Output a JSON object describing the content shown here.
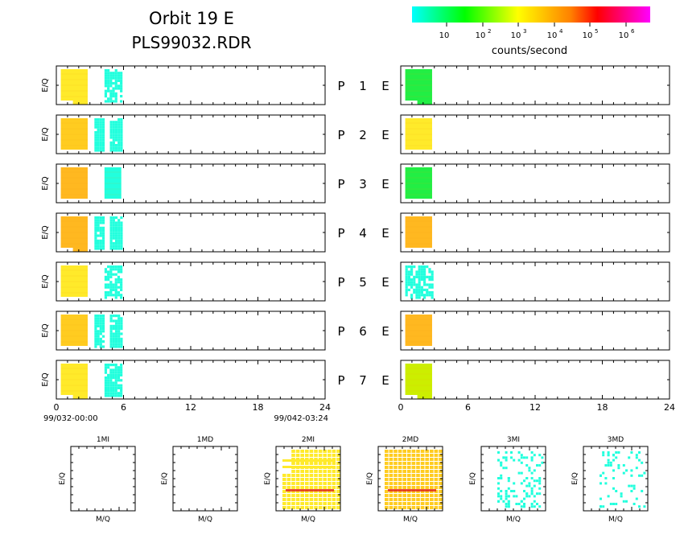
{
  "header": {
    "title": "Orbit 19 E",
    "subtitle": "PLS99032.RDR"
  },
  "colorbar": {
    "label": "counts/second",
    "ticks": [
      {
        "base": "10",
        "exp": ""
      },
      {
        "base": "10",
        "exp": "2"
      },
      {
        "base": "10",
        "exp": "3"
      },
      {
        "base": "10",
        "exp": "4"
      },
      {
        "base": "10",
        "exp": "5"
      },
      {
        "base": "10",
        "exp": "6"
      }
    ],
    "stops": [
      "#00ffff",
      "#00ff80",
      "#00ff00",
      "#80ff00",
      "#ffff00",
      "#ffc000",
      "#ff8000",
      "#ff0000",
      "#ff0080",
      "#ff00ff"
    ]
  },
  "colors": {
    "yellow": "#ffea2a",
    "orange_yellow": "#ffcc20",
    "orange": "#ffb820",
    "green": "#22ee44",
    "lime": "#ccee00",
    "cyan": "#22ffdd",
    "red": "#dd1111"
  },
  "chart_data": {
    "type": "heatmap",
    "ylabel": "E/Q",
    "xlim": [
      0,
      24
    ],
    "x_ticks": [
      "0",
      "6",
      "12",
      "18",
      "24"
    ],
    "left_time_start": "99/032-00:00",
    "left_time_end": "99/042-03:24",
    "rows": [
      {
        "label": "P",
        "num": "1",
        "suffix": "E",
        "left_blocks": [
          {
            "x0": 0.4,
            "x1": 2.8,
            "color": "yellow",
            "cut_bottom": true
          },
          {
            "x0": 4.3,
            "x1": 5.8,
            "color": "cyan",
            "pattern": "sparse"
          }
        ],
        "right_blocks": [
          {
            "x0": 0.4,
            "x1": 2.8,
            "color": "green",
            "cut_bottom": true
          }
        ]
      },
      {
        "label": "P",
        "num": "2",
        "suffix": "E",
        "left_blocks": [
          {
            "x0": 0.4,
            "x1": 2.8,
            "color": "orange_yellow"
          },
          {
            "x0": 3.4,
            "x1": 5.8,
            "color": "cyan",
            "pattern": "gapped"
          }
        ],
        "right_blocks": [
          {
            "x0": 0.4,
            "x1": 2.8,
            "color": "yellow"
          }
        ]
      },
      {
        "label": "P",
        "num": "3",
        "suffix": "E",
        "left_blocks": [
          {
            "x0": 0.4,
            "x1": 2.8,
            "color": "orange"
          },
          {
            "x0": 4.3,
            "x1": 5.8,
            "color": "cyan"
          }
        ],
        "right_blocks": [
          {
            "x0": 0.4,
            "x1": 2.8,
            "color": "green"
          }
        ]
      },
      {
        "label": "P",
        "num": "4",
        "suffix": "E",
        "left_blocks": [
          {
            "x0": 0.4,
            "x1": 2.8,
            "color": "orange",
            "cut_bottom": true
          },
          {
            "x0": 3.4,
            "x1": 5.8,
            "color": "cyan",
            "pattern": "gapped"
          }
        ],
        "right_blocks": [
          {
            "x0": 0.4,
            "x1": 2.8,
            "color": "orange"
          }
        ]
      },
      {
        "label": "P",
        "num": "5",
        "suffix": "E",
        "left_blocks": [
          {
            "x0": 0.4,
            "x1": 2.8,
            "color": "yellow"
          },
          {
            "x0": 4.3,
            "x1": 5.8,
            "color": "cyan",
            "pattern": "sparse"
          }
        ],
        "right_blocks": [
          {
            "x0": 0.4,
            "x1": 2.8,
            "color": "cyan",
            "pattern": "sparse"
          }
        ]
      },
      {
        "label": "P",
        "num": "6",
        "suffix": "E",
        "left_blocks": [
          {
            "x0": 0.4,
            "x1": 2.8,
            "color": "orange_yellow"
          },
          {
            "x0": 3.4,
            "x1": 5.8,
            "color": "cyan",
            "pattern": "gapped"
          }
        ],
        "right_blocks": [
          {
            "x0": 0.4,
            "x1": 2.8,
            "color": "orange"
          }
        ]
      },
      {
        "label": "P",
        "num": "7",
        "suffix": "E",
        "left_blocks": [
          {
            "x0": 0.4,
            "x1": 2.8,
            "color": "yellow",
            "cut_bottom": true
          },
          {
            "x0": 4.3,
            "x1": 5.8,
            "color": "cyan",
            "pattern": "edge"
          }
        ],
        "right_blocks": [
          {
            "x0": 0.4,
            "x1": 2.8,
            "color": "lime",
            "cut_bottom": true
          }
        ]
      }
    ],
    "small_panels": [
      {
        "title": "1MI",
        "xlabel": "M/Q",
        "ylabel": "E/Q",
        "fill": "none"
      },
      {
        "title": "1MD",
        "xlabel": "M/Q",
        "ylabel": "E/Q",
        "fill": "none"
      },
      {
        "title": "2MI",
        "xlabel": "M/Q",
        "ylabel": "E/Q",
        "fill": "yellow_grid"
      },
      {
        "title": "2MD",
        "xlabel": "M/Q",
        "ylabel": "E/Q",
        "fill": "orange_grid"
      },
      {
        "title": "3MI",
        "xlabel": "M/Q",
        "ylabel": "E/Q",
        "fill": "cyan_scatter"
      },
      {
        "title": "3MD",
        "xlabel": "M/Q",
        "ylabel": "E/Q",
        "fill": "cyan_scatter_sparse"
      }
    ]
  }
}
